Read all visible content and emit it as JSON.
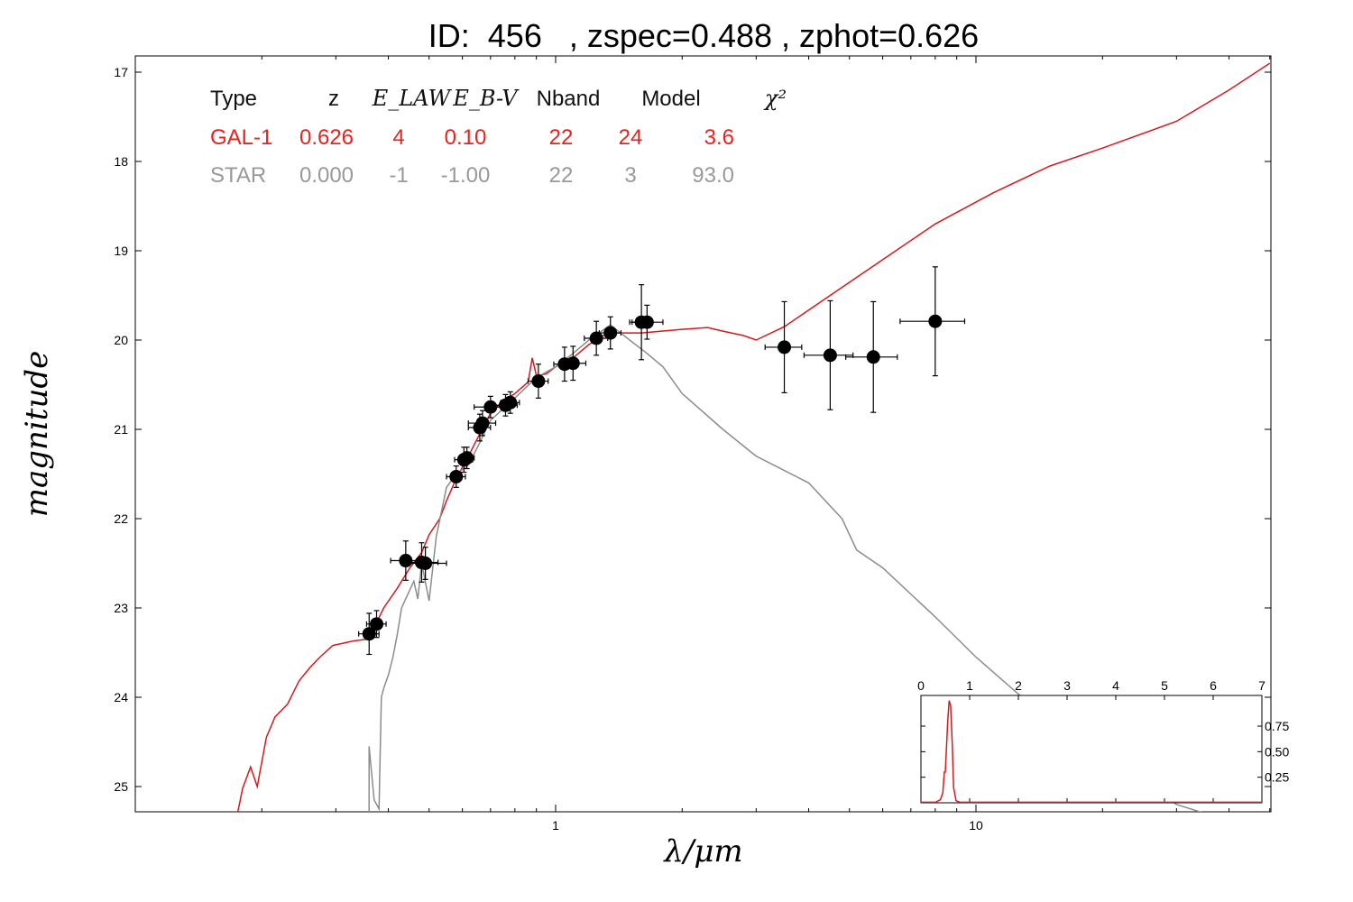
{
  "header": {
    "title": "ID:  456   , zspec=0.488 , zphot=0.626"
  },
  "fit_table": {
    "headers": [
      "Type",
      "z",
      "E_LAW",
      "E_B-V",
      "Nband",
      "Model",
      "χ²"
    ],
    "rows": [
      {
        "cells": [
          "GAL-1",
          "0.626",
          "4",
          "0.10",
          "22",
          "24",
          "3.6"
        ],
        "color": "#e8231f"
      },
      {
        "cells": [
          "STAR",
          "0.000",
          "-1",
          "-1.00",
          "22",
          "3",
          "93.0"
        ],
        "color": "#999999"
      }
    ]
  },
  "chart_data": [
    {
      "type": "scatter",
      "title": "ID:  456   , zspec=0.488 , zphot=0.626",
      "xlabel": "λ/μm",
      "ylabel": "magnitude",
      "x_scale": "log",
      "xlim": [
        0.1,
        50
      ],
      "ylim": [
        25.3,
        16.85
      ],
      "y_inverted": true,
      "grid": false,
      "x_tick_labels": [
        {
          "value": 1,
          "label": "1"
        },
        {
          "value": 10,
          "label": "10"
        }
      ],
      "y_tick_labels": [
        {
          "value": 17,
          "label": "17"
        },
        {
          "value": 18,
          "label": "18"
        },
        {
          "value": 19,
          "label": "19"
        },
        {
          "value": 20,
          "label": "20"
        },
        {
          "value": 21,
          "label": "21"
        },
        {
          "value": 22,
          "label": "22"
        },
        {
          "value": 23,
          "label": "23"
        },
        {
          "value": 24,
          "label": "24"
        },
        {
          "value": 25,
          "label": "25"
        }
      ],
      "photometry": [
        {
          "x": 0.36,
          "y": 23.29,
          "xerr": 0.02,
          "yerr": 0.23
        },
        {
          "x": 0.375,
          "y": 23.18,
          "xerr": 0.02,
          "yerr": 0.15
        },
        {
          "x": 0.44,
          "y": 22.47,
          "xerr": 0.035,
          "yerr": 0.22
        },
        {
          "x": 0.48,
          "y": 22.49,
          "xerr": 0.045,
          "yerr": 0.22
        },
        {
          "x": 0.49,
          "y": 22.5,
          "xerr": 0.06,
          "yerr": 0.18
        },
        {
          "x": 0.58,
          "y": 21.53,
          "xerr": 0.03,
          "yerr": 0.12
        },
        {
          "x": 0.605,
          "y": 21.34,
          "xerr": 0.03,
          "yerr": 0.14
        },
        {
          "x": 0.615,
          "y": 21.32,
          "xerr": 0.025,
          "yerr": 0.12
        },
        {
          "x": 0.66,
          "y": 20.98,
          "xerr": 0.04,
          "yerr": 0.15
        },
        {
          "x": 0.67,
          "y": 20.93,
          "xerr": 0.05,
          "yerr": 0.14
        },
        {
          "x": 0.7,
          "y": 20.75,
          "xerr": 0.06,
          "yerr": 0.12
        },
        {
          "x": 0.76,
          "y": 20.73,
          "xerr": 0.05,
          "yerr": 0.12
        },
        {
          "x": 0.78,
          "y": 20.7,
          "xerr": 0.04,
          "yerr": 0.12
        },
        {
          "x": 0.91,
          "y": 20.46,
          "xerr": 0.05,
          "yerr": 0.19
        },
        {
          "x": 1.05,
          "y": 20.27,
          "xerr": 0.06,
          "yerr": 0.19
        },
        {
          "x": 1.1,
          "y": 20.26,
          "xerr": 0.08,
          "yerr": 0.19
        },
        {
          "x": 1.25,
          "y": 19.98,
          "xerr": 0.08,
          "yerr": 0.19
        },
        {
          "x": 1.35,
          "y": 19.92,
          "xerr": 0.08,
          "yerr": 0.18
        },
        {
          "x": 1.6,
          "y": 19.8,
          "xerr": 0.08,
          "yerr": 0.42
        },
        {
          "x": 1.65,
          "y": 19.8,
          "xerr": 0.15,
          "yerr": 0.19
        },
        {
          "x": 3.5,
          "y": 20.08,
          "xerr": 0.35,
          "yerr": 0.51
        },
        {
          "x": 4.5,
          "y": 20.17,
          "xerr": 0.6,
          "yerr": 0.61
        },
        {
          "x": 5.7,
          "y": 20.19,
          "xerr": 0.8,
          "yerr": 0.62
        },
        {
          "x": 8.0,
          "y": 19.79,
          "xerr": 1.4,
          "yerr": 0.61
        }
      ],
      "series": [
        {
          "name": "GAL-1",
          "color": "#d7191c",
          "points": [
            [
              0.175,
              25.3
            ],
            [
              0.18,
              25.02
            ],
            [
              0.188,
              24.78
            ],
            [
              0.195,
              25.0
            ],
            [
              0.205,
              24.45
            ],
            [
              0.215,
              24.22
            ],
            [
              0.23,
              24.08
            ],
            [
              0.245,
              23.82
            ],
            [
              0.26,
              23.67
            ],
            [
              0.275,
              23.55
            ],
            [
              0.295,
              23.42
            ],
            [
              0.33,
              23.37
            ],
            [
              0.355,
              23.35
            ],
            [
              0.37,
              23.22
            ],
            [
              0.39,
              23.0
            ],
            [
              0.42,
              22.78
            ],
            [
              0.45,
              22.55
            ],
            [
              0.48,
              22.38
            ],
            [
              0.5,
              22.18
            ],
            [
              0.53,
              22.0
            ],
            [
              0.55,
              21.8
            ],
            [
              0.58,
              21.55
            ],
            [
              0.62,
              21.3
            ],
            [
              0.66,
              21.05
            ],
            [
              0.7,
              20.82
            ],
            [
              0.75,
              20.68
            ],
            [
              0.8,
              20.6
            ],
            [
              0.86,
              20.47
            ],
            [
              0.88,
              20.2
            ],
            [
              0.9,
              20.4
            ],
            [
              0.95,
              20.38
            ],
            [
              1.0,
              20.3
            ],
            [
              1.1,
              20.2
            ],
            [
              1.2,
              20.05
            ],
            [
              1.3,
              19.95
            ],
            [
              1.4,
              19.92
            ],
            [
              1.6,
              19.92
            ],
            [
              2.0,
              19.88
            ],
            [
              2.3,
              19.86
            ],
            [
              2.5,
              19.9
            ],
            [
              2.8,
              19.95
            ],
            [
              3.0,
              20.0
            ],
            [
              3.5,
              19.85
            ],
            [
              4.5,
              19.5
            ],
            [
              6.0,
              19.1
            ],
            [
              8.0,
              18.7
            ],
            [
              11.0,
              18.35
            ],
            [
              15.0,
              18.05
            ],
            [
              20.0,
              17.85
            ],
            [
              30.0,
              17.55
            ],
            [
              40.0,
              17.2
            ],
            [
              50.0,
              16.9
            ]
          ]
        },
        {
          "name": "STAR",
          "color": "#8c8c8c",
          "points": [
            [
              0.36,
              25.3
            ],
            [
              0.36,
              24.55
            ],
            [
              0.37,
              25.15
            ],
            [
              0.38,
              25.25
            ],
            [
              0.385,
              24.0
            ],
            [
              0.39,
              23.9
            ],
            [
              0.4,
              23.75
            ],
            [
              0.41,
              23.55
            ],
            [
              0.42,
              23.3
            ],
            [
              0.43,
              23.0
            ],
            [
              0.46,
              22.7
            ],
            [
              0.47,
              22.9
            ],
            [
              0.48,
              22.5
            ],
            [
              0.5,
              22.92
            ],
            [
              0.52,
              22.2
            ],
            [
              0.55,
              21.65
            ],
            [
              0.58,
              21.5
            ],
            [
              0.62,
              21.4
            ],
            [
              0.66,
              21.15
            ],
            [
              0.7,
              20.9
            ],
            [
              0.8,
              20.65
            ],
            [
              0.9,
              20.42
            ],
            [
              1.0,
              20.3
            ],
            [
              1.1,
              20.15
            ],
            [
              1.2,
              20.0
            ],
            [
              1.35,
              19.83
            ],
            [
              1.5,
              20.0
            ],
            [
              1.65,
              20.15
            ],
            [
              1.8,
              20.3
            ],
            [
              2.0,
              20.6
            ],
            [
              2.5,
              21.0
            ],
            [
              3.0,
              21.3
            ],
            [
              4.0,
              21.6
            ],
            [
              4.8,
              22.0
            ],
            [
              5.2,
              22.35
            ],
            [
              6.0,
              22.55
            ],
            [
              8.0,
              23.1
            ],
            [
              10.0,
              23.55
            ],
            [
              14.0,
              24.15
            ],
            [
              20.0,
              24.65
            ],
            [
              30.0,
              25.2
            ],
            [
              35.0,
              25.3
            ]
          ]
        }
      ]
    },
    {
      "type": "line",
      "title": "",
      "xlabel": "",
      "ylabel": "",
      "xlim": [
        0,
        7
      ],
      "ylim": [
        0,
        1.05
      ],
      "x_tick_labels": [
        "0",
        "1",
        "2",
        "3",
        "4",
        "5",
        "6",
        "7"
      ],
      "y_tick_labels": [
        "0.25",
        "0.50",
        "0.75"
      ],
      "series": [
        {
          "name": "",
          "color": "#d7191c",
          "points": [
            [
              0,
              0.005
            ],
            [
              0.3,
              0.005
            ],
            [
              0.4,
              0.03
            ],
            [
              0.45,
              0.1
            ],
            [
              0.48,
              0.3
            ],
            [
              0.5,
              0.3
            ],
            [
              0.52,
              0.5
            ],
            [
              0.55,
              0.8
            ],
            [
              0.58,
              1.0
            ],
            [
              0.61,
              0.95
            ],
            [
              0.64,
              0.6
            ],
            [
              0.67,
              0.15
            ],
            [
              0.72,
              0.02
            ],
            [
              0.8,
              0.005
            ],
            [
              7,
              0.005
            ]
          ]
        }
      ]
    }
  ]
}
